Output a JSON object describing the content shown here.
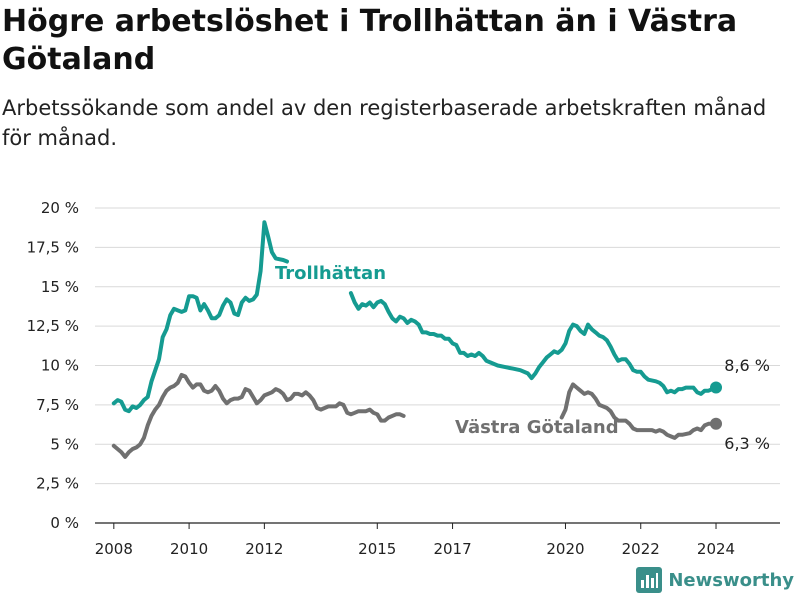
{
  "title": "Högre arbetslöshet i Trollhättan än i Västra Götaland",
  "subtitle": "Arbetssökande som andel av den registerbaserade arbetskraften månad för månad.",
  "brand": {
    "name": "Newsworthy",
    "icon": "bar-chart-logo-icon"
  },
  "colors": {
    "trollhattan": "#159b91",
    "vastra": "#707070",
    "grid": "#d9d9d9",
    "axis": "#222222"
  },
  "chart_data": {
    "type": "line",
    "ylim": [
      0,
      20
    ],
    "yticks": [
      0,
      2.5,
      5,
      7.5,
      10,
      12.5,
      15,
      17.5,
      20
    ],
    "ytick_labels": [
      "0 %",
      "2,5 %",
      "5 %",
      "7,5 %",
      "10 %",
      "12,5 %",
      "15 %",
      "17,5 %",
      "20 %"
    ],
    "xlim": [
      2007.5,
      2025.7
    ],
    "xticks": [
      2008,
      2010,
      2012,
      2015,
      2017,
      2020,
      2022,
      2024
    ],
    "xtick_labels": [
      "2008",
      "2010",
      "2012",
      "2015",
      "2017",
      "2020",
      "2022",
      "2024"
    ],
    "series": [
      {
        "name": "Trollhättan",
        "color": "#159b91",
        "end_label": "8,6 %",
        "segments": [
          [
            [
              2008.0,
              7.6
            ],
            [
              2008.1,
              7.8
            ],
            [
              2008.2,
              7.7
            ],
            [
              2008.3,
              7.2
            ],
            [
              2008.4,
              7.1
            ],
            [
              2008.5,
              7.4
            ],
            [
              2008.6,
              7.3
            ],
            [
              2008.7,
              7.5
            ],
            [
              2008.8,
              7.8
            ],
            [
              2008.9,
              8.0
            ],
            [
              2009.0,
              9.0
            ],
            [
              2009.2,
              10.4
            ],
            [
              2009.3,
              11.8
            ],
            [
              2009.4,
              12.3
            ],
            [
              2009.5,
              13.2
            ],
            [
              2009.6,
              13.6
            ],
            [
              2009.7,
              13.5
            ],
            [
              2009.8,
              13.4
            ],
            [
              2009.9,
              13.5
            ],
            [
              2010.0,
              14.4
            ],
            [
              2010.1,
              14.4
            ],
            [
              2010.2,
              14.3
            ],
            [
              2010.3,
              13.5
            ],
            [
              2010.4,
              13.9
            ],
            [
              2010.5,
              13.5
            ],
            [
              2010.6,
              13.0
            ],
            [
              2010.7,
              13.0
            ],
            [
              2010.8,
              13.2
            ],
            [
              2010.9,
              13.8
            ],
            [
              2011.0,
              14.2
            ],
            [
              2011.1,
              14.0
            ],
            [
              2011.2,
              13.3
            ],
            [
              2011.3,
              13.2
            ],
            [
              2011.4,
              14.0
            ],
            [
              2011.5,
              14.3
            ],
            [
              2011.6,
              14.1
            ],
            [
              2011.7,
              14.2
            ],
            [
              2011.8,
              14.5
            ],
            [
              2011.9,
              16.0
            ],
            [
              2012.0,
              19.1
            ],
            [
              2012.1,
              18.2
            ],
            [
              2012.2,
              17.2
            ],
            [
              2012.3,
              16.8
            ],
            [
              2012.5,
              16.7
            ],
            [
              2012.6,
              16.6
            ]
          ],
          [
            [
              2014.3,
              14.6
            ],
            [
              2014.4,
              14.0
            ],
            [
              2014.5,
              13.6
            ],
            [
              2014.6,
              13.9
            ],
            [
              2014.7,
              13.8
            ],
            [
              2014.8,
              14.0
            ],
            [
              2014.9,
              13.7
            ],
            [
              2015.0,
              14.0
            ],
            [
              2015.1,
              14.1
            ],
            [
              2015.2,
              13.9
            ],
            [
              2015.3,
              13.4
            ],
            [
              2015.4,
              13.0
            ],
            [
              2015.5,
              12.8
            ],
            [
              2015.6,
              13.1
            ],
            [
              2015.7,
              13.0
            ],
            [
              2015.8,
              12.7
            ],
            [
              2015.9,
              12.9
            ],
            [
              2016.0,
              12.8
            ],
            [
              2016.1,
              12.6
            ],
            [
              2016.2,
              12.1
            ],
            [
              2016.3,
              12.1
            ],
            [
              2016.4,
              12.0
            ],
            [
              2016.5,
              12.0
            ],
            [
              2016.6,
              11.9
            ],
            [
              2016.7,
              11.9
            ],
            [
              2016.8,
              11.7
            ],
            [
              2016.9,
              11.7
            ],
            [
              2017.0,
              11.4
            ],
            [
              2017.1,
              11.3
            ],
            [
              2017.2,
              10.8
            ],
            [
              2017.3,
              10.8
            ],
            [
              2017.4,
              10.6
            ],
            [
              2017.5,
              10.7
            ],
            [
              2017.6,
              10.6
            ],
            [
              2017.7,
              10.8
            ],
            [
              2017.8,
              10.6
            ],
            [
              2017.9,
              10.3
            ],
            [
              2018.0,
              10.2
            ],
            [
              2018.2,
              10.0
            ],
            [
              2018.4,
              9.9
            ],
            [
              2018.6,
              9.8
            ],
            [
              2018.8,
              9.7
            ],
            [
              2019.0,
              9.5
            ],
            [
              2019.1,
              9.2
            ],
            [
              2019.2,
              9.5
            ],
            [
              2019.3,
              9.9
            ],
            [
              2019.4,
              10.2
            ],
            [
              2019.5,
              10.5
            ],
            [
              2019.6,
              10.7
            ],
            [
              2019.7,
              10.9
            ],
            [
              2019.8,
              10.8
            ],
            [
              2019.9,
              11.0
            ],
            [
              2020.0,
              11.4
            ],
            [
              2020.1,
              12.2
            ],
            [
              2020.2,
              12.6
            ],
            [
              2020.3,
              12.5
            ],
            [
              2020.4,
              12.2
            ],
            [
              2020.5,
              12.0
            ],
            [
              2020.6,
              12.6
            ],
            [
              2020.7,
              12.3
            ],
            [
              2020.8,
              12.1
            ],
            [
              2020.9,
              11.9
            ],
            [
              2021.0,
              11.8
            ],
            [
              2021.1,
              11.6
            ],
            [
              2021.2,
              11.2
            ],
            [
              2021.3,
              10.7
            ],
            [
              2021.4,
              10.3
            ],
            [
              2021.5,
              10.4
            ],
            [
              2021.6,
              10.4
            ],
            [
              2021.7,
              10.1
            ],
            [
              2021.8,
              9.7
            ],
            [
              2021.9,
              9.6
            ],
            [
              2022.0,
              9.6
            ],
            [
              2022.1,
              9.3
            ],
            [
              2022.2,
              9.1
            ],
            [
              2022.4,
              9.0
            ],
            [
              2022.5,
              8.9
            ],
            [
              2022.6,
              8.7
            ],
            [
              2022.7,
              8.3
            ],
            [
              2022.8,
              8.4
            ],
            [
              2022.9,
              8.3
            ],
            [
              2023.0,
              8.5
            ],
            [
              2023.1,
              8.5
            ],
            [
              2023.2,
              8.6
            ],
            [
              2023.4,
              8.6
            ],
            [
              2023.5,
              8.3
            ],
            [
              2023.6,
              8.2
            ],
            [
              2023.7,
              8.4
            ],
            [
              2023.8,
              8.4
            ],
            [
              2023.9,
              8.5
            ],
            [
              2024.0,
              8.6
            ]
          ]
        ]
      },
      {
        "name": "Västra Götaland",
        "color": "#707070",
        "end_label": "6,3 %",
        "segments": [
          [
            [
              2008.0,
              4.9
            ],
            [
              2008.1,
              4.7
            ],
            [
              2008.2,
              4.5
            ],
            [
              2008.3,
              4.2
            ],
            [
              2008.4,
              4.5
            ],
            [
              2008.5,
              4.7
            ],
            [
              2008.6,
              4.8
            ],
            [
              2008.7,
              5.0
            ],
            [
              2008.8,
              5.4
            ],
            [
              2008.9,
              6.2
            ],
            [
              2009.0,
              6.8
            ],
            [
              2009.1,
              7.2
            ],
            [
              2009.2,
              7.5
            ],
            [
              2009.3,
              8.0
            ],
            [
              2009.4,
              8.4
            ],
            [
              2009.5,
              8.6
            ],
            [
              2009.6,
              8.7
            ],
            [
              2009.7,
              8.9
            ],
            [
              2009.8,
              9.4
            ],
            [
              2009.9,
              9.3
            ],
            [
              2010.0,
              8.9
            ],
            [
              2010.1,
              8.6
            ],
            [
              2010.2,
              8.8
            ],
            [
              2010.3,
              8.8
            ],
            [
              2010.4,
              8.4
            ],
            [
              2010.5,
              8.3
            ],
            [
              2010.6,
              8.4
            ],
            [
              2010.7,
              8.7
            ],
            [
              2010.8,
              8.4
            ],
            [
              2010.9,
              7.9
            ],
            [
              2011.0,
              7.6
            ],
            [
              2011.1,
              7.8
            ],
            [
              2011.2,
              7.9
            ],
            [
              2011.3,
              7.9
            ],
            [
              2011.4,
              8.0
            ],
            [
              2011.5,
              8.5
            ],
            [
              2011.6,
              8.4
            ],
            [
              2011.7,
              8.0
            ],
            [
              2011.8,
              7.6
            ],
            [
              2011.9,
              7.8
            ],
            [
              2012.0,
              8.1
            ],
            [
              2012.1,
              8.2
            ],
            [
              2012.2,
              8.3
            ],
            [
              2012.3,
              8.5
            ],
            [
              2012.4,
              8.4
            ],
            [
              2012.5,
              8.2
            ],
            [
              2012.6,
              7.8
            ],
            [
              2012.7,
              7.9
            ],
            [
              2012.8,
              8.2
            ],
            [
              2012.9,
              8.2
            ],
            [
              2013.0,
              8.1
            ],
            [
              2013.1,
              8.3
            ],
            [
              2013.2,
              8.1
            ],
            [
              2013.3,
              7.8
            ],
            [
              2013.4,
              7.3
            ],
            [
              2013.5,
              7.2
            ],
            [
              2013.6,
              7.3
            ],
            [
              2013.7,
              7.4
            ],
            [
              2013.8,
              7.4
            ],
            [
              2013.9,
              7.4
            ],
            [
              2014.0,
              7.6
            ],
            [
              2014.1,
              7.5
            ],
            [
              2014.2,
              7.0
            ],
            [
              2014.3,
              6.9
            ],
            [
              2014.4,
              7.0
            ],
            [
              2014.5,
              7.1
            ],
            [
              2014.6,
              7.1
            ],
            [
              2014.7,
              7.1
            ],
            [
              2014.8,
              7.2
            ],
            [
              2014.9,
              7.0
            ],
            [
              2015.0,
              6.9
            ],
            [
              2015.1,
              6.5
            ],
            [
              2015.2,
              6.5
            ],
            [
              2015.3,
              6.7
            ],
            [
              2015.4,
              6.8
            ],
            [
              2015.5,
              6.9
            ],
            [
              2015.6,
              6.9
            ],
            [
              2015.7,
              6.8
            ]
          ],
          [
            [
              2019.9,
              6.7
            ],
            [
              2020.0,
              7.2
            ],
            [
              2020.1,
              8.3
            ],
            [
              2020.2,
              8.8
            ],
            [
              2020.3,
              8.6
            ],
            [
              2020.4,
              8.4
            ],
            [
              2020.5,
              8.2
            ],
            [
              2020.6,
              8.3
            ],
            [
              2020.7,
              8.2
            ],
            [
              2020.8,
              7.9
            ],
            [
              2020.9,
              7.5
            ],
            [
              2021.0,
              7.4
            ],
            [
              2021.1,
              7.3
            ],
            [
              2021.2,
              7.1
            ],
            [
              2021.3,
              6.7
            ],
            [
              2021.4,
              6.5
            ],
            [
              2021.5,
              6.5
            ],
            [
              2021.6,
              6.5
            ],
            [
              2021.7,
              6.3
            ],
            [
              2021.8,
              6.0
            ],
            [
              2021.9,
              5.9
            ],
            [
              2022.0,
              5.9
            ],
            [
              2022.3,
              5.9
            ],
            [
              2022.4,
              5.8
            ],
            [
              2022.5,
              5.9
            ],
            [
              2022.6,
              5.8
            ],
            [
              2022.7,
              5.6
            ],
            [
              2022.8,
              5.5
            ],
            [
              2022.9,
              5.4
            ],
            [
              2023.0,
              5.6
            ],
            [
              2023.1,
              5.6
            ],
            [
              2023.3,
              5.7
            ],
            [
              2023.4,
              5.9
            ],
            [
              2023.5,
              6.0
            ],
            [
              2023.6,
              5.9
            ],
            [
              2023.7,
              6.2
            ],
            [
              2023.8,
              6.3
            ],
            [
              2024.0,
              6.3
            ]
          ]
        ]
      }
    ]
  }
}
